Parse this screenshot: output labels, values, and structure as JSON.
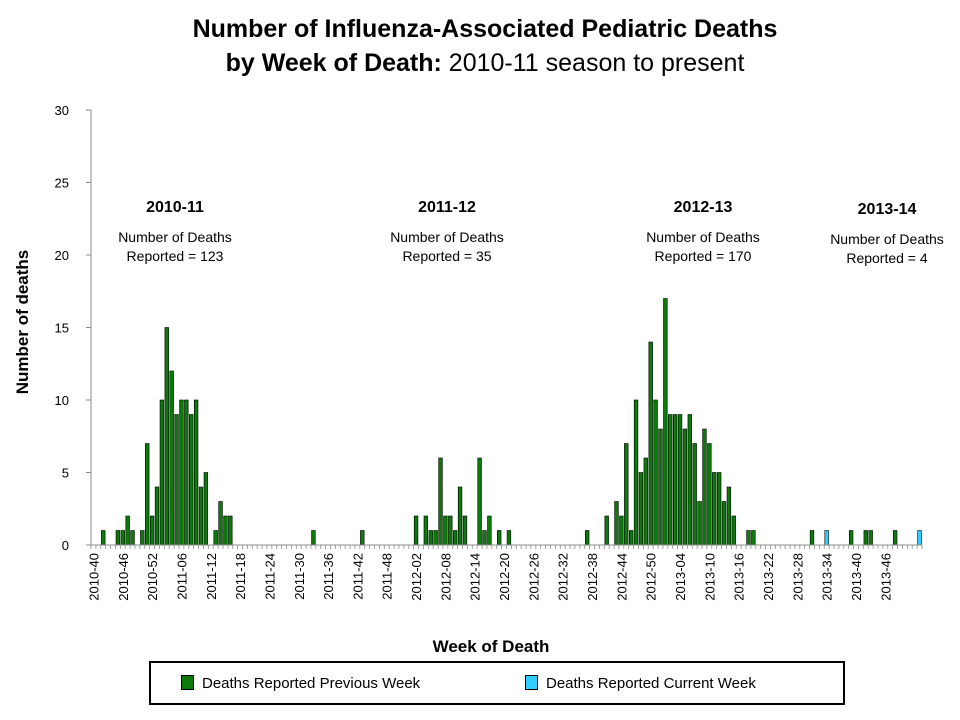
{
  "title": {
    "line1": "Number of Influenza-Associated Pediatric Deaths",
    "line2_bold": "by Week of Death:",
    "line2_rest": " 2010-11 season to present"
  },
  "colors": {
    "previous": "#0b7a0b",
    "current": "#33ccff",
    "axis": "#8c8c8c",
    "bar_outline": "#000000"
  },
  "chart_data": {
    "type": "bar",
    "stacked": true,
    "xlabel": "Week of Death",
    "ylabel": "Number of deaths",
    "ylim": [
      0,
      30
    ],
    "yticks": [
      0,
      5,
      10,
      15,
      20,
      25,
      30
    ],
    "grid": false,
    "legend_position": "bottom",
    "x_tick_labels": [
      "2010-40",
      "2010-46",
      "2010-52",
      "2011-06",
      "2011-12",
      "2011-18",
      "2011-24",
      "2011-30",
      "2011-36",
      "2011-42",
      "2011-48",
      "2012-02",
      "2012-08",
      "2012-14",
      "2012-20",
      "2012-26",
      "2012-32",
      "2012-38",
      "2012-44",
      "2012-50",
      "2013-04",
      "2013-10",
      "2013-16",
      "2013-22",
      "2013-28",
      "2013-34",
      "2013-40",
      "2013-46"
    ],
    "series": [
      {
        "name": "Deaths Reported Previous Week",
        "values": [
          0,
          0,
          1,
          0,
          0,
          1,
          1,
          2,
          1,
          0,
          1,
          7,
          2,
          4,
          10,
          15,
          12,
          9,
          10,
          10,
          9,
          10,
          4,
          5,
          0,
          1,
          3,
          2,
          2,
          0,
          0,
          0,
          0,
          0,
          0,
          0,
          0,
          0,
          0,
          0,
          0,
          0,
          0,
          0,
          0,
          1,
          0,
          0,
          0,
          0,
          0,
          0,
          0,
          0,
          0,
          1,
          0,
          0,
          0,
          0,
          0,
          0,
          0,
          0,
          0,
          0,
          2,
          0,
          2,
          1,
          1,
          6,
          2,
          2,
          1,
          4,
          2,
          0,
          0,
          6,
          1,
          2,
          0,
          1,
          0,
          1,
          0,
          0,
          0,
          0,
          0,
          0,
          0,
          0,
          0,
          0,
          0,
          0,
          0,
          0,
          0,
          1,
          0,
          0,
          0,
          2,
          0,
          3,
          2,
          7,
          1,
          10,
          5,
          6,
          14,
          10,
          8,
          17,
          9,
          9,
          9,
          8,
          9,
          7,
          3,
          8,
          7,
          5,
          5,
          3,
          4,
          2,
          0,
          0,
          1,
          1,
          0,
          0,
          0,
          0,
          0,
          0,
          0,
          0,
          0,
          0,
          0,
          1,
          0,
          0,
          0,
          0,
          0,
          0,
          0,
          1,
          0,
          0,
          1,
          1,
          0,
          0,
          0,
          0,
          1,
          0,
          0,
          0,
          0,
          0
        ]
      },
      {
        "name": "Deaths Reported Current Week",
        "values": [
          0,
          0,
          0,
          0,
          0,
          0,
          0,
          0,
          0,
          0,
          0,
          0,
          0,
          0,
          0,
          0,
          0,
          0,
          0,
          0,
          0,
          0,
          0,
          0,
          0,
          0,
          0,
          0,
          0,
          0,
          0,
          0,
          0,
          0,
          0,
          0,
          0,
          0,
          0,
          0,
          0,
          0,
          0,
          0,
          0,
          0,
          0,
          0,
          0,
          0,
          0,
          0,
          0,
          0,
          0,
          0,
          0,
          0,
          0,
          0,
          0,
          0,
          0,
          0,
          0,
          0,
          0,
          0,
          0,
          0,
          0,
          0,
          0,
          0,
          0,
          0,
          0,
          0,
          0,
          0,
          0,
          0,
          0,
          0,
          0,
          0,
          0,
          0,
          0,
          0,
          0,
          0,
          0,
          0,
          0,
          0,
          0,
          0,
          0,
          0,
          0,
          0,
          0,
          0,
          0,
          0,
          0,
          0,
          0,
          0,
          0,
          0,
          0,
          0,
          0,
          0,
          0,
          0,
          0,
          0,
          0,
          0,
          0,
          0,
          0,
          0,
          0,
          0,
          0,
          0,
          0,
          0,
          0,
          0,
          0,
          0,
          0,
          0,
          0,
          0,
          0,
          0,
          0,
          0,
          0,
          0,
          0,
          0,
          0,
          0,
          1,
          0,
          0,
          0,
          0,
          0,
          0,
          0,
          0,
          0,
          0,
          0,
          0,
          0,
          0,
          0,
          0,
          0,
          0,
          1
        ]
      }
    ],
    "annotations": [
      {
        "season": "2010-11",
        "line1": "Number of Deaths",
        "line2": "Reported = 123"
      },
      {
        "season": "2011-12",
        "line1": "Number of Deaths",
        "line2": "Reported = 35"
      },
      {
        "season": "2012-13",
        "line1": "Number of Deaths",
        "line2": "Reported = 170"
      },
      {
        "season": "2013-14",
        "line1": "Number of Deaths",
        "line2": "Reported = 4"
      }
    ]
  }
}
